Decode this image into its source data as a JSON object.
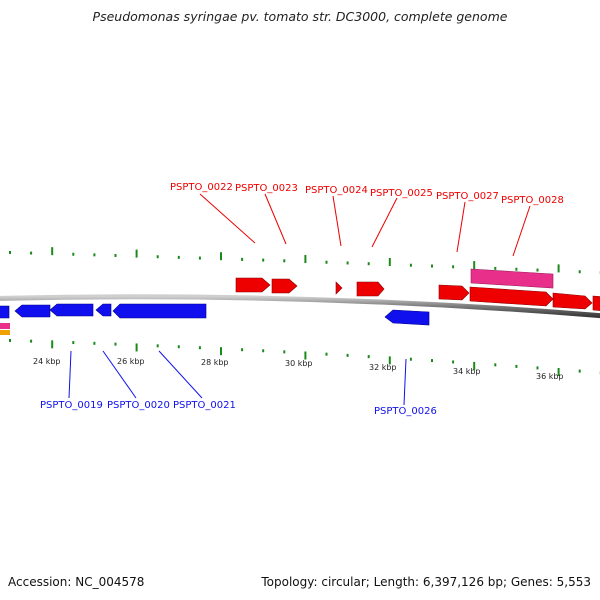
{
  "title": "Pseudomonas syringae pv. tomato str. DC3000, complete genome",
  "footer": {
    "accession": "Accession: NC_004578",
    "summary": "Topology: circular; Length: 6,397,126 bp; Genes: 5,553"
  },
  "colors": {
    "forward_strand": "#ee0000",
    "reverse_strand": "#1010ee",
    "feature_pink": "#e8308a",
    "feature_orange": "#f0a000",
    "backbone": "#888888",
    "ticks": "#1a8a1a"
  },
  "scale_labels": [
    "24 kbp",
    "26 kbp",
    "28 kbp",
    "30 kbp",
    "32 kbp",
    "34 kbp",
    "36 kbp"
  ],
  "genes_forward": [
    "PSPTO_0022",
    "PSPTO_0023",
    "PSPTO_0024",
    "PSPTO_0025",
    "PSPTO_0027",
    "PSPTO_0028"
  ],
  "genes_reverse": [
    "PSPTO_0019",
    "PSPTO_0020",
    "PSPTO_0021",
    "PSPTO_0026"
  ]
}
